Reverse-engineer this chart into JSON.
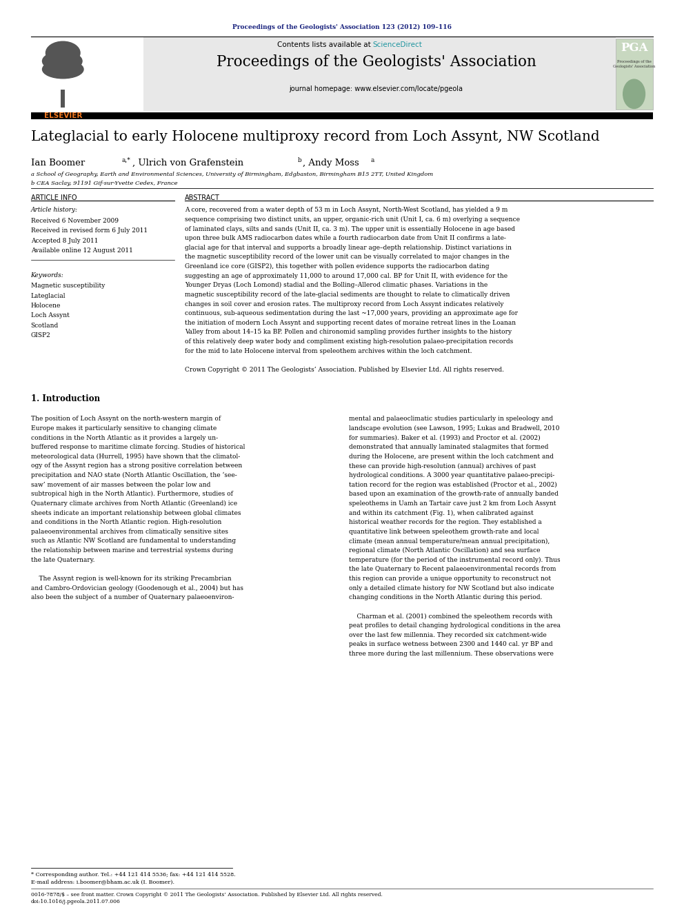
{
  "page_width": 9.92,
  "page_height": 13.23,
  "background_color": "#ffffff",
  "top_citation": "Proceedings of the Geologists' Association 123 (2012) 109–116",
  "header_bg": "#e8e8e8",
  "header_text": "Contents lists available at ScienceDirect",
  "journal_title": "Proceedings of the Geologists' Association",
  "journal_url": "journal homepage: www.elsevier.com/locate/pgeola",
  "sciencedirect_color": "#2196a0",
  "paper_title": "Lateglacial to early Holocene multiproxy record from Loch Assynt, NW Scotland",
  "affiliation_a": "a School of Geography, Earth and Environmental Sciences, University of Birmingham, Edgbaston, Birmingham B15 2TT, United Kingdom",
  "affiliation_b": "b CEA Saclay, 91191 Gif-sur-Yvette Cedex, France",
  "article_info_header": "ARTICLE INFO",
  "article_history_label": "Article history:",
  "article_history": [
    "Received 6 November 2009",
    "Received in revised form 6 July 2011",
    "Accepted 8 July 2011",
    "Available online 12 August 2011"
  ],
  "keywords_label": "Keywords:",
  "keywords": [
    "Magnetic susceptibility",
    "Lateglacial",
    "Holocene",
    "Loch Assynt",
    "Scotland",
    "GISP2"
  ],
  "abstract_header": "ABSTRACT",
  "abstract_lines": [
    "A core, recovered from a water depth of 53 m in Loch Assynt, North-West Scotland, has yielded a 9 m",
    "sequence comprising two distinct units, an upper, organic-rich unit (Unit I, ca. 6 m) overlying a sequence",
    "of laminated clays, silts and sands (Unit II, ca. 3 m). The upper unit is essentially Holocene in age based",
    "upon three bulk AMS radiocarbon dates while a fourth radiocarbon date from Unit II confirms a late-",
    "glacial age for that interval and supports a broadly linear age–depth relationship. Distinct variations in",
    "the magnetic susceptibility record of the lower unit can be visually correlated to major changes in the",
    "Greenland ice core (GISP2), this together with pollen evidence supports the radiocarbon dating",
    "suggesting an age of approximately 11,000 to around 17,000 cal. BP for Unit II, with evidence for the",
    "Younger Dryas (Loch Lomond) stadial and the Bolling–Allerod climatic phases. Variations in the",
    "magnetic susceptibility record of the late-glacial sediments are thought to relate to climatically driven",
    "changes in soil cover and erosion rates. The multiproxy record from Loch Assynt indicates relatively",
    "continuous, sub-aqueous sedimentation during the last ~17,000 years, providing an approximate age for",
    "the initiation of modern Loch Assynt and supporting recent dates of moraine retreat lines in the Loanan",
    "Valley from about 14–15 ka BP. Pollen and chironomid sampling provides further insights to the history",
    "of this relatively deep water body and compliment existing high-resolution palaeo-precipitation records",
    "for the mid to late Holocene interval from speleothem archives within the loch catchment.",
    "",
    "Crown Copyright © 2011 The Geologists’ Association. Published by Elsevier Ltd. All rights reserved."
  ],
  "section1_header": "1. Introduction",
  "intro_col1_lines": [
    "The position of Loch Assynt on the north-western margin of",
    "Europe makes it particularly sensitive to changing climate",
    "conditions in the North Atlantic as it provides a largely un-",
    "buffered response to maritime climate forcing. Studies of historical",
    "meteorological data (Hurrell, 1995) have shown that the climatol-",
    "ogy of the Assynt region has a strong positive correlation between",
    "precipitation and NAO state (North Atlantic Oscillation, the ‘see-",
    "saw’ movement of air masses between the polar low and",
    "subtropical high in the North Atlantic). Furthermore, studies of",
    "Quaternary climate archives from North Atlantic (Greenland) ice",
    "sheets indicate an important relationship between global climates",
    "and conditions in the North Atlantic region. High-resolution",
    "palaeoenvironmental archives from climatically sensitive sites",
    "such as Atlantic NW Scotland are fundamental to understanding",
    "the relationship between marine and terrestrial systems during",
    "the late Quaternary.",
    "",
    "    The Assynt region is well-known for its striking Precambrian",
    "and Cambro-Ordovician geology (Goodenough et al., 2004) but has",
    "also been the subject of a number of Quaternary palaeoenviron-"
  ],
  "intro_col2_lines": [
    "mental and palaeoclimatic studies particularly in speleology and",
    "landscape evolution (see Lawson, 1995; Lukas and Bradwell, 2010",
    "for summaries). Baker et al. (1993) and Proctor et al. (2002)",
    "demonstrated that annually laminated stalagmites that formed",
    "during the Holocene, are present within the loch catchment and",
    "these can provide high-resolution (annual) archives of past",
    "hydrological conditions. A 3000 year quantitative palaeo-precipi-",
    "tation record for the region was established (Proctor et al., 2002)",
    "based upon an examination of the growth-rate of annually banded",
    "speleothems in Uamh an Tartair cave just 2 km from Loch Assynt",
    "and within its catchment (Fig. 1), when calibrated against",
    "historical weather records for the region. They established a",
    "quantitative link between speleothem growth-rate and local",
    "climate (mean annual temperature/mean annual precipitation),",
    "regional climate (North Atlantic Oscillation) and sea surface",
    "temperature (for the period of the instrumental record only). Thus",
    "the late Quaternary to Recent palaeoenvironmental records from",
    "this region can provide a unique opportunity to reconstruct not",
    "only a detailed climate history for NW Scotland but also indicate",
    "changing conditions in the North Atlantic during this period.",
    "",
    "    Charman et al. (2001) combined the speleothem records with",
    "peat profiles to detail changing hydrological conditions in the area",
    "over the last few millennia. They recorded six catchment-wide",
    "peaks in surface wetness between 2300 and 1440 cal. yr BP and",
    "three more during the last millennium. These observations were"
  ],
  "footnote1": "* Corresponding author. Tel.: +44 121 414 5536; fax: +44 121 414 5528.",
  "footnote2": "E-mail address: i.boomer@bham.ac.uk (I. Boomer).",
  "footer1": "0016-7878/$ – see front matter. Crown Copyright © 2011 The Geologists’ Association. Published by Elsevier Ltd. All rights reserved.",
  "footer2": "doi:10.1016/j.pgeola.2011.07.006",
  "elsevier_color": "#f47920",
  "citation_color": "#1a237e",
  "pga_bg": "#c8d8c0"
}
